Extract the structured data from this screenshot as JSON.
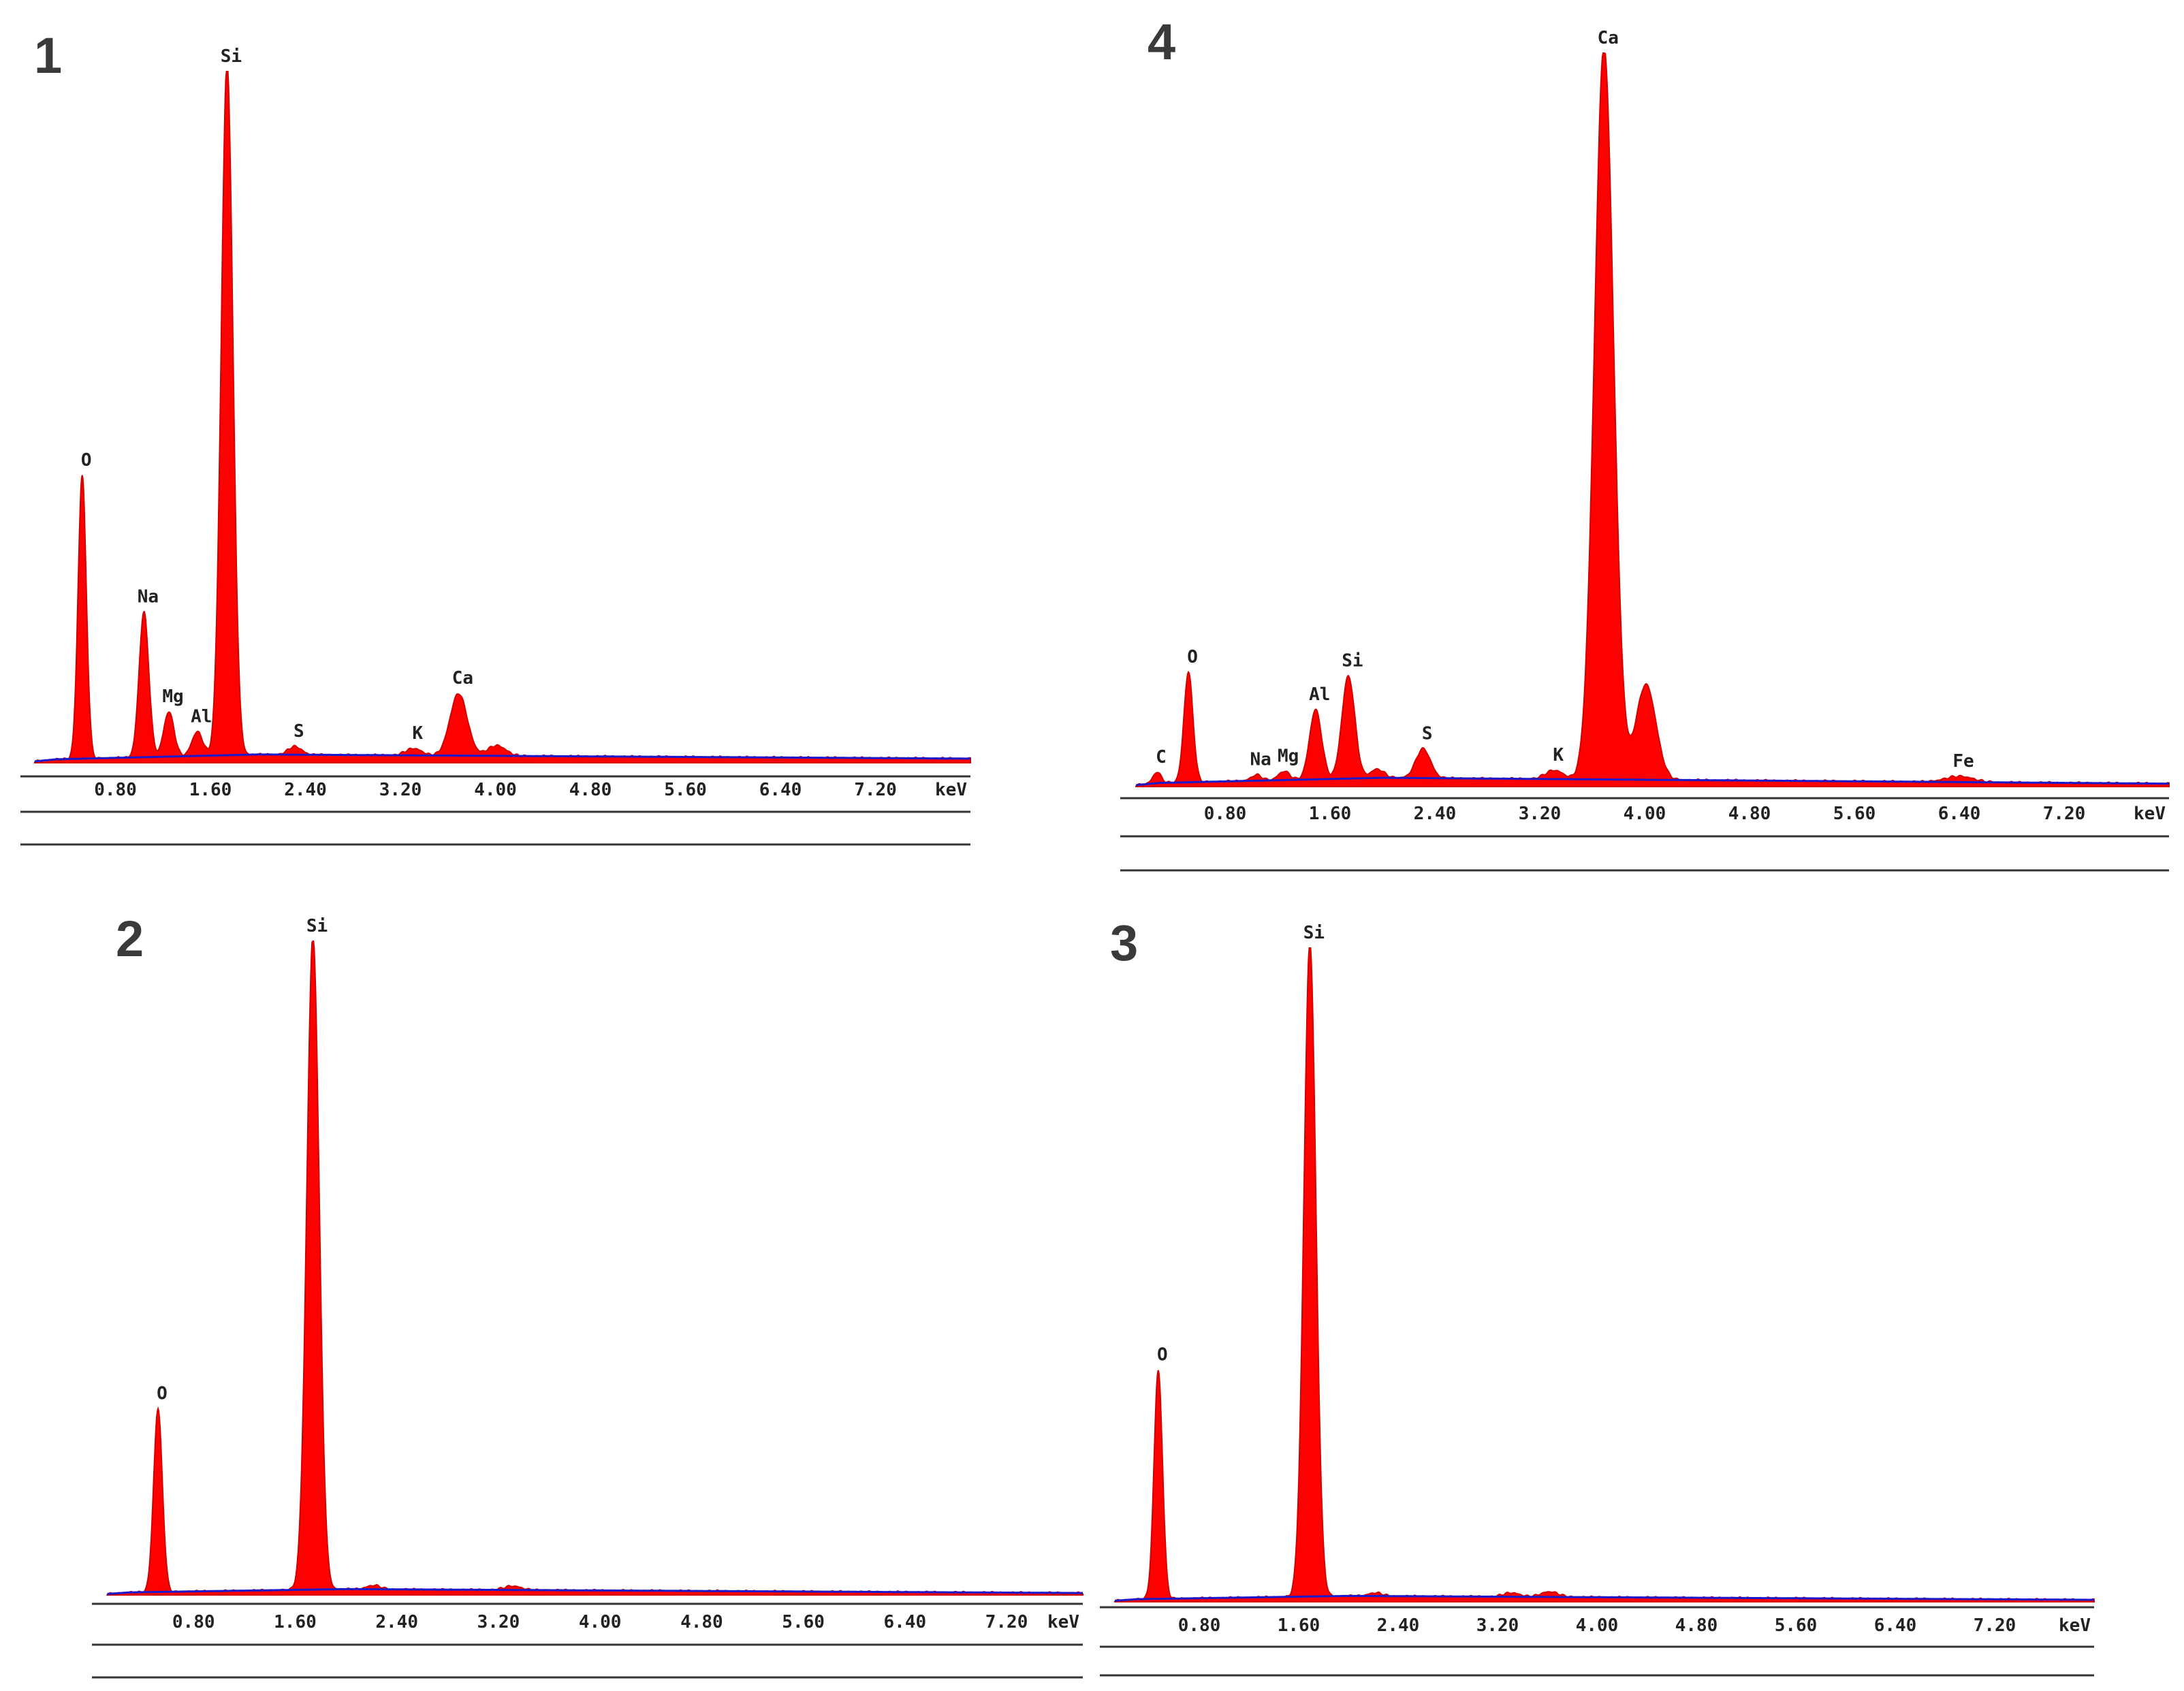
{
  "colors": {
    "fill": "#ff0000",
    "edge": "#d40000",
    "background_line": "#1a1acc",
    "axis": "#333333"
  },
  "chart_data": [
    {
      "type": "area",
      "panel_label": "1",
      "xlabel": "keV",
      "xlim": [
        0,
        8.0
      ],
      "ylim": [
        0,
        1.0
      ],
      "x_ticks": [
        "0.80",
        "1.60",
        "2.40",
        "3.20",
        "4.00",
        "4.80",
        "5.60",
        "6.40",
        "7.20"
      ],
      "peaks": [
        {
          "element": "O",
          "energy": 0.52,
          "height": 0.41
        },
        {
          "element": "Na",
          "energy": 1.04,
          "height": 0.21
        },
        {
          "element": "Mg",
          "energy": 1.25,
          "height": 0.065
        },
        {
          "element": "Al",
          "energy": 1.49,
          "height": 0.035
        },
        {
          "element": "Si",
          "energy": 1.74,
          "height": 1.0
        },
        {
          "element": "S",
          "energy": 2.31,
          "height": 0.012
        },
        {
          "element": "K",
          "energy": 3.31,
          "height": 0.01
        },
        {
          "element": "Ca",
          "energy": 3.69,
          "height": 0.09
        },
        {
          "element": "",
          "energy": 4.01,
          "height": 0.015
        }
      ],
      "background": [
        0.005,
        0.012,
        0.006
      ]
    },
    {
      "type": "area",
      "panel_label": "4",
      "xlabel": "keV",
      "xlim": [
        0,
        8.0
      ],
      "ylim": [
        0,
        1.0
      ],
      "x_ticks": [
        "0.80",
        "1.60",
        "2.40",
        "3.20",
        "4.00",
        "4.80",
        "5.60",
        "6.40",
        "7.20"
      ],
      "peaks": [
        {
          "element": "C",
          "energy": 0.28,
          "height": 0.015
        },
        {
          "element": "O",
          "energy": 0.52,
          "height": 0.15
        },
        {
          "element": "Na",
          "energy": 1.04,
          "height": 0.008
        },
        {
          "element": "Mg",
          "energy": 1.25,
          "height": 0.012
        },
        {
          "element": "Al",
          "energy": 1.49,
          "height": 0.095
        },
        {
          "element": "Si",
          "energy": 1.74,
          "height": 0.14
        },
        {
          "element": "",
          "energy": 1.96,
          "height": 0.012
        },
        {
          "element": "S",
          "energy": 2.31,
          "height": 0.04
        },
        {
          "element": "K",
          "energy": 3.31,
          "height": 0.012
        },
        {
          "element": "Ca",
          "energy": 3.69,
          "height": 1.0
        },
        {
          "element": "",
          "energy": 4.01,
          "height": 0.13
        },
        {
          "element": "Fe",
          "energy": 6.4,
          "height": 0.008
        }
      ],
      "background": [
        0.005,
        0.012,
        0.004
      ]
    },
    {
      "type": "area",
      "panel_label": "2",
      "xlabel": "keV",
      "xlim": [
        0,
        7.8
      ],
      "ylim": [
        0,
        1.0
      ],
      "x_ticks": [
        "0.80",
        "1.60",
        "2.40",
        "3.20",
        "4.00",
        "4.80",
        "5.60",
        "6.40",
        "7.20"
      ],
      "peaks": [
        {
          "element": "O",
          "energy": 0.52,
          "height": 0.28
        },
        {
          "element": "Si",
          "energy": 1.74,
          "height": 1.0
        },
        {
          "element": "",
          "energy": 2.22,
          "height": 0.006
        },
        {
          "element": "",
          "energy": 3.31,
          "height": 0.006
        }
      ],
      "background": [
        0.004,
        0.009,
        0.003
      ]
    },
    {
      "type": "area",
      "panel_label": "3",
      "xlabel": "keV",
      "xlim": [
        0,
        8.0
      ],
      "ylim": [
        0,
        1.0
      ],
      "x_ticks": [
        "0.80",
        "1.60",
        "2.40",
        "3.20",
        "4.00",
        "4.80",
        "5.60",
        "6.40",
        "7.20"
      ],
      "peaks": [
        {
          "element": "O",
          "energy": 0.47,
          "height": 0.35
        },
        {
          "element": "Si",
          "energy": 1.69,
          "height": 1.0
        },
        {
          "element": "",
          "energy": 2.22,
          "height": 0.005
        },
        {
          "element": "",
          "energy": 3.31,
          "height": 0.006
        },
        {
          "element": "",
          "energy": 3.62,
          "height": 0.008
        }
      ],
      "background": [
        0.004,
        0.009,
        0.003
      ]
    }
  ]
}
